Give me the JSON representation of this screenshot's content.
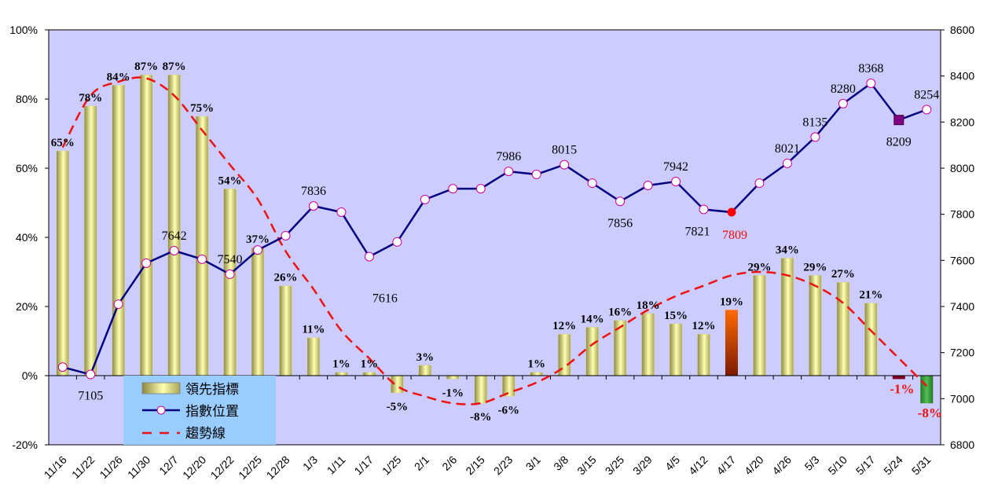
{
  "chart_data": {
    "type": "bar+line",
    "categories": [
      "11/16",
      "11/22",
      "11/26",
      "11/30",
      "12/7",
      "12/20",
      "12/22",
      "12/25",
      "12/28",
      "1/3",
      "1/11",
      "1/17",
      "1/25",
      "2/1",
      "2/6",
      "2/15",
      "2/23",
      "3/1",
      "3/8",
      "3/15",
      "3/25",
      "3/29",
      "4/5",
      "4/12",
      "4/17",
      "4/20",
      "4/26",
      "5/3",
      "5/10",
      "5/17",
      "5/24",
      "5/31"
    ],
    "left_axis": {
      "ylim": [
        -20,
        100
      ],
      "ticks": [
        "-20%",
        "0%",
        "20%",
        "40%",
        "60%",
        "80%",
        "100%"
      ],
      "tick_values": [
        -20,
        0,
        20,
        40,
        60,
        80,
        100
      ]
    },
    "right_axis": {
      "ylim": [
        6800,
        8600
      ],
      "ticks": [
        "6800",
        "7000",
        "7200",
        "7400",
        "7600",
        "7800",
        "8000",
        "8200",
        "8400",
        "8600"
      ],
      "tick_values": [
        6800,
        7000,
        7200,
        7400,
        7600,
        7800,
        8000,
        8200,
        8400,
        8600
      ]
    },
    "grid": false,
    "plot_background": "#ccccff",
    "series": [
      {
        "name": "領先指標",
        "type": "bar",
        "axis": "left",
        "unit": "%",
        "values": [
          65,
          78,
          84,
          87,
          87,
          75,
          54,
          37,
          26,
          11,
          1,
          1,
          -5,
          3,
          -1,
          -8,
          -6,
          1,
          12,
          14,
          16,
          18,
          15,
          12,
          19,
          29,
          34,
          29,
          27,
          21,
          -1,
          -8
        ],
        "labels": [
          "65%",
          "78%",
          "84%",
          "87%",
          "87%",
          "75%",
          "54%",
          "37%",
          "26%",
          "11%",
          "1%",
          "1%",
          "-5%",
          "3%",
          "-1%",
          "-8%",
          "-6%",
          "1%",
          "12%",
          "14%",
          "16%",
          "18%",
          "15%",
          "12%",
          "19%",
          "29%",
          "34%",
          "29%",
          "27%",
          "21%",
          "-1%",
          "-8%"
        ],
        "color": "#c8c480",
        "highlight": {
          "4/17": "#ff6600",
          "5/24": "#800020",
          "5/31": "#339933"
        },
        "red_labels": [
          "5/24",
          "5/31"
        ]
      },
      {
        "name": "指數位置",
        "type": "line",
        "axis": "right",
        "color": "#000080",
        "marker_color": "#ffffff",
        "marker_edge": "#cc0099",
        "values": [
          7137,
          7105,
          7410,
          7588,
          7642,
          7605,
          7540,
          7645,
          7707,
          7836,
          7809,
          7616,
          7680,
          7864,
          7911,
          7911,
          7986,
          7973,
          8015,
          7935,
          7856,
          7925,
          7942,
          7821,
          7809,
          7935,
          8021,
          8135,
          8280,
          8368,
          8209,
          8254
        ],
        "labels": [
          "",
          "7105",
          "",
          "",
          "7642",
          "",
          "7540",
          "",
          "",
          "7836",
          "",
          "7616",
          "",
          "",
          "",
          "",
          "7986",
          "",
          "8015",
          "",
          "7856",
          "",
          "7942",
          "7821",
          "7809",
          "",
          "8021",
          "8135",
          "8280",
          "8368",
          "8209",
          "8254"
        ],
        "highlight": {
          "4/17": "#ff0000",
          "5/24": "#800080"
        }
      },
      {
        "name": "趨勢線",
        "type": "line",
        "style": "dashed",
        "axis": "left",
        "color": "#ff0000",
        "values": [
          66,
          81,
          85,
          86,
          81,
          71,
          61,
          51,
          36,
          25,
          13,
          5,
          -3,
          -6,
          -8,
          -8,
          -5,
          -2,
          2.5,
          9,
          14,
          19,
          23,
          26,
          29,
          30,
          29,
          26,
          21,
          13,
          5,
          -3
        ]
      }
    ],
    "legend": {
      "placement": "bottom-left",
      "background": "#99ccff",
      "items": [
        "領先指標",
        "指數位置",
        "趨勢線"
      ]
    }
  }
}
